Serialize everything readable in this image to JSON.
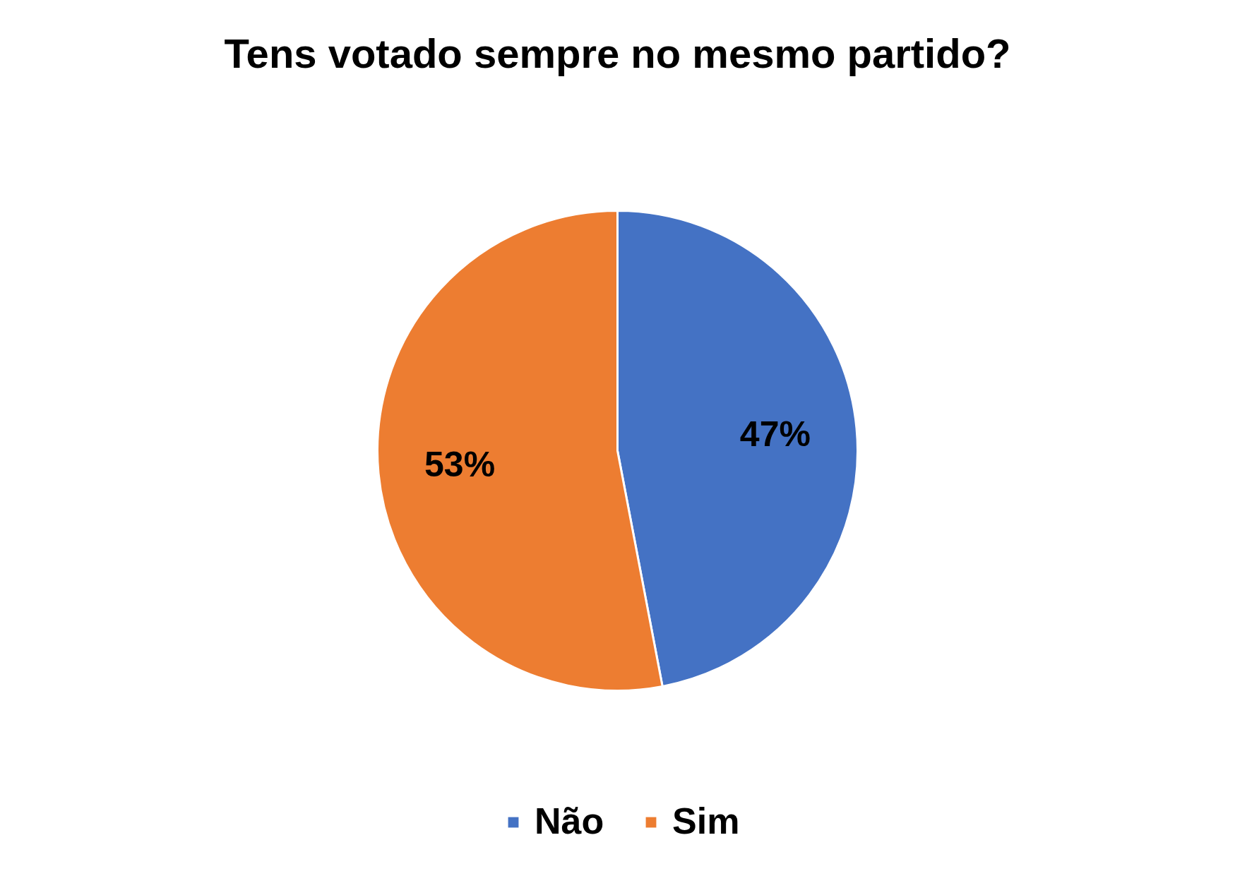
{
  "chart_data": {
    "type": "pie",
    "title": "Tens votado sempre no mesmo partido?",
    "categories": [
      "Não",
      "Sim"
    ],
    "values": [
      47,
      53
    ],
    "colors": [
      "#4472c4",
      "#ed7d31"
    ],
    "value_labels": [
      "47%",
      "53%"
    ],
    "legend": "bottom"
  }
}
